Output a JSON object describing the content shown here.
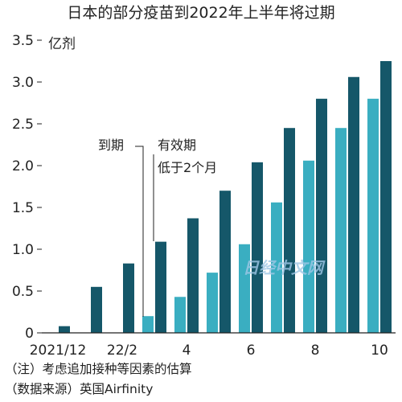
{
  "chart_data": {
    "type": "bar",
    "title": "日本的部分疫苗到2022年上半年将过期",
    "ylabel": "亿剂",
    "ylim": [
      0,
      3.5
    ],
    "yticks": [
      0,
      0.5,
      1.0,
      1.5,
      2.0,
      2.5,
      3.0,
      3.5
    ],
    "ytick_labels": [
      "0",
      "0.5",
      "1.0",
      "1.5",
      "2.0",
      "2.5",
      "3.0",
      "3.5"
    ],
    "categories": [
      "2021/12",
      "2022/1",
      "22/2",
      "3",
      "4",
      "5",
      "6",
      "7",
      "8",
      "9",
      "10"
    ],
    "xtick_labels": [
      {
        "index": 0,
        "label": "2021/12"
      },
      {
        "index": 2,
        "label": "22/2"
      },
      {
        "index": 4,
        "label": "4"
      },
      {
        "index": 6,
        "label": "6"
      },
      {
        "index": 8,
        "label": "8"
      },
      {
        "index": 10,
        "label": "10"
      }
    ],
    "series": [
      {
        "name": "有效期低于2个月",
        "color": "#3aaec1",
        "values": [
          0,
          0,
          0,
          0.2,
          0.43,
          0.72,
          1.06,
          1.56,
          2.06,
          2.45,
          2.8
        ]
      },
      {
        "name": "到期",
        "color": "#155769",
        "values": [
          0.08,
          0.55,
          0.83,
          1.09,
          1.37,
          1.7,
          2.04,
          2.45,
          2.8,
          3.06,
          3.25
        ]
      }
    ],
    "annotations": {
      "expired": "到期",
      "validity_line1": "有效期",
      "validity_line2": "低于2个月"
    },
    "grid": false,
    "legend": "annotation near 3"
  },
  "notes": {
    "note1": "（注）考虑追加接种等因素的估算",
    "note2": "（数据来源）英国Airfinity"
  },
  "watermark": "日经中文网"
}
